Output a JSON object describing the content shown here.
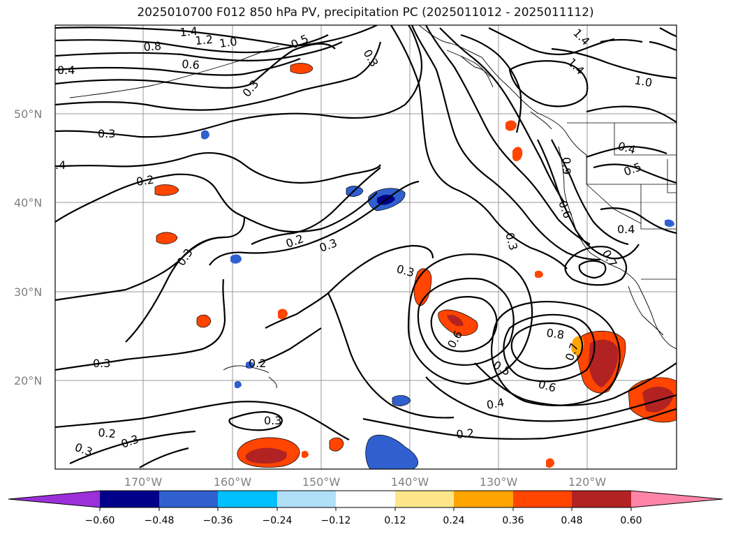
{
  "title": "2025010700 F012 850 hPa PV, precipitation PC (2025011012 - 2025011112)",
  "lat_labels": [
    "50°N",
    "40°N",
    "30°N",
    "20°N"
  ],
  "lon_labels": [
    "170°W",
    "160°W",
    "150°W",
    "140°W",
    "130°W",
    "120°W"
  ],
  "contour_labels": [
    "1.4",
    "1.2",
    "1.0",
    "0.8",
    "0.6",
    "0.5",
    "0.4",
    "0.3",
    "0.3",
    "0.3",
    "0.3",
    "0.2",
    "0.2",
    "0.2",
    "0.3",
    "0.3",
    "0.2",
    "0.3",
    "0.3",
    "0.3",
    "0.4",
    "0.5",
    "0.6",
    "0.8",
    "0.7",
    "1.4",
    "1.4",
    "1.0",
    "0.9",
    "0.6",
    "0.4",
    "0.5",
    "0.4",
    "0.6",
    "0.3",
    "0.2",
    ".4",
    "0.7",
    "0.3"
  ],
  "colorbar": {
    "colors": [
      "#9b30d9",
      "#00008b",
      "#3060cf",
      "#00bfff",
      "#b0e0f8",
      "#ffffff",
      "#fde68a",
      "#ffa500",
      "#ff4500",
      "#b22222",
      "#ff85a8"
    ],
    "ticks": [
      "−0.60",
      "−0.48",
      "−0.36",
      "−0.24",
      "−0.12",
      "0.12",
      "0.24",
      "0.36",
      "0.48",
      "0.60"
    ]
  }
}
